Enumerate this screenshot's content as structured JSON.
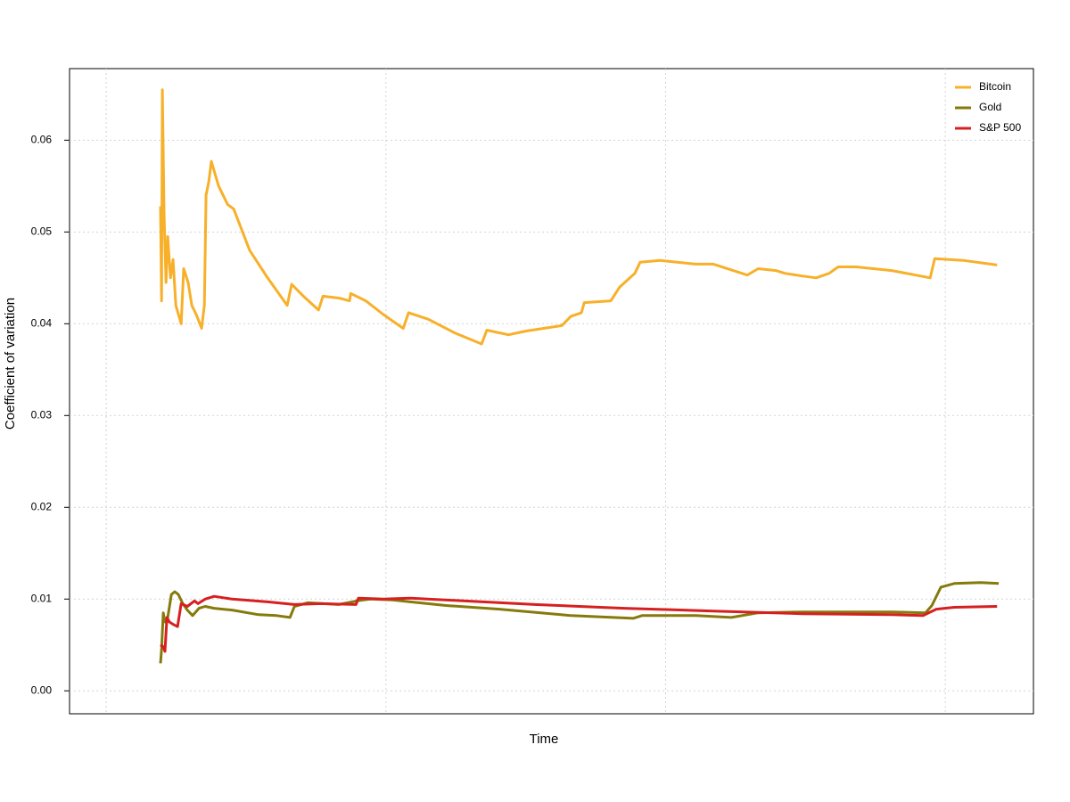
{
  "chart_data": {
    "type": "line",
    "xlabel": "Time",
    "ylabel": "Coefficient of variation",
    "xlim": [
      -13.1,
      331.5
    ],
    "xticks": [
      0,
      100,
      200,
      300
    ],
    "ylim": [
      -0.0025,
      0.0678
    ],
    "yticks": [
      {
        "value": 0,
        "label": "0.00"
      },
      {
        "value": 0.01,
        "label": "0.01"
      },
      {
        "value": 0.02,
        "label": "0.02"
      },
      {
        "value": 0.03,
        "label": "0.03"
      },
      {
        "value": 0.04,
        "label": "0.04"
      },
      {
        "value": 0.05,
        "label": "0.05"
      },
      {
        "value": 0.06,
        "label": "0.06"
      }
    ],
    "grid": true,
    "legend": "top-right",
    "series": [
      {
        "name": "Bitcoin",
        "color": "#f7b02a",
        "x": [
          19.4,
          19.8,
          20.1,
          20.7,
          21.4,
          22.0,
          23.0,
          23.9,
          24.9,
          26.8,
          27.7,
          29.3,
          30.6,
          32.2,
          34.1,
          35.1,
          35.7,
          36.7,
          37.6,
          40.2,
          43.4,
          45.6,
          51.3,
          57.7,
          64.7,
          66.3,
          70.5,
          75.9,
          77.5,
          83.2,
          87.0,
          87.4,
          92.8,
          99.1,
          106.2,
          108.1,
          115.1,
          124.6,
          134.2,
          136.1,
          143.8,
          150.1,
          162.9,
          166.1,
          169.9,
          170.9,
          180.4,
          183.6,
          189.0,
          190.9,
          198.0,
          210.7,
          217.1,
          229.2,
          233.1,
          239.4,
          242.6,
          249.0,
          253.8,
          258.5,
          261.7,
          268.1,
          280.8,
          294.6,
          296.2,
          306.4,
          318.5
        ],
        "values": [
          0.0528,
          0.0425,
          0.0655,
          0.052,
          0.0445,
          0.0495,
          0.045,
          0.047,
          0.042,
          0.04,
          0.046,
          0.0445,
          0.042,
          0.041,
          0.0395,
          0.042,
          0.054,
          0.0555,
          0.0577,
          0.055,
          0.053,
          0.0525,
          0.048,
          0.045,
          0.042,
          0.0443,
          0.043,
          0.0415,
          0.043,
          0.0428,
          0.0425,
          0.0433,
          0.0425,
          0.041,
          0.0395,
          0.0412,
          0.0405,
          0.039,
          0.0378,
          0.0393,
          0.0388,
          0.0392,
          0.0398,
          0.0408,
          0.0412,
          0.0423,
          0.0425,
          0.044,
          0.0455,
          0.0467,
          0.0469,
          0.0465,
          0.0465,
          0.0453,
          0.046,
          0.0458,
          0.0455,
          0.0452,
          0.045,
          0.0455,
          0.0462,
          0.0462,
          0.0458,
          0.045,
          0.0471,
          0.0469,
          0.0464
        ]
      },
      {
        "name": "Gold",
        "color": "#857a0b",
        "x": [
          19.4,
          19.8,
          20.4,
          21.0,
          22.0,
          23.3,
          24.5,
          25.8,
          27.4,
          29.0,
          30.9,
          33.2,
          35.4,
          38.6,
          45.0,
          54.5,
          60.9,
          65.7,
          67.3,
          72.0,
          83.2,
          89.6,
          94.4,
          102.4,
          108.7,
          121.5,
          140.6,
          166.1,
          188.4,
          191.6,
          210.7,
          223.5,
          233.1,
          249.0,
          280.8,
          292.9,
          295.2,
          298.4,
          303.2,
          312.7,
          319.1
        ],
        "values": [
          0.003,
          0.0045,
          0.0085,
          0.0075,
          0.008,
          0.0105,
          0.0108,
          0.0105,
          0.0095,
          0.0088,
          0.0082,
          0.009,
          0.0092,
          0.009,
          0.0088,
          0.0083,
          0.0082,
          0.008,
          0.0092,
          0.0096,
          0.0094,
          0.0098,
          0.01,
          0.0099,
          0.0097,
          0.0093,
          0.0089,
          0.0082,
          0.0079,
          0.0082,
          0.0082,
          0.008,
          0.0085,
          0.0086,
          0.0086,
          0.0085,
          0.0093,
          0.0113,
          0.0117,
          0.0118,
          0.0117
        ]
      },
      {
        "name": "S&P 500",
        "color": "#d62020",
        "x": [
          19.4,
          20.4,
          21.0,
          21.7,
          22.6,
          24.2,
          25.5,
          26.8,
          29.0,
          31.6,
          32.8,
          35.4,
          38.6,
          45.0,
          57.7,
          67.3,
          76.8,
          89.3,
          90.2,
          99.1,
          108.7,
          127.8,
          153.3,
          185.2,
          217.1,
          249.0,
          280.8,
          292.0,
          296.8,
          303.2,
          318.5
        ],
        "values": [
          0.005,
          0.0048,
          0.0043,
          0.008,
          0.0075,
          0.0072,
          0.007,
          0.0095,
          0.0092,
          0.0098,
          0.0095,
          0.01,
          0.0103,
          0.01,
          0.0097,
          0.0094,
          0.0095,
          0.0094,
          0.0101,
          0.01,
          0.0101,
          0.0098,
          0.0094,
          0.009,
          0.0087,
          0.0084,
          0.0083,
          0.0082,
          0.0089,
          0.0091,
          0.0092
        ]
      }
    ]
  }
}
